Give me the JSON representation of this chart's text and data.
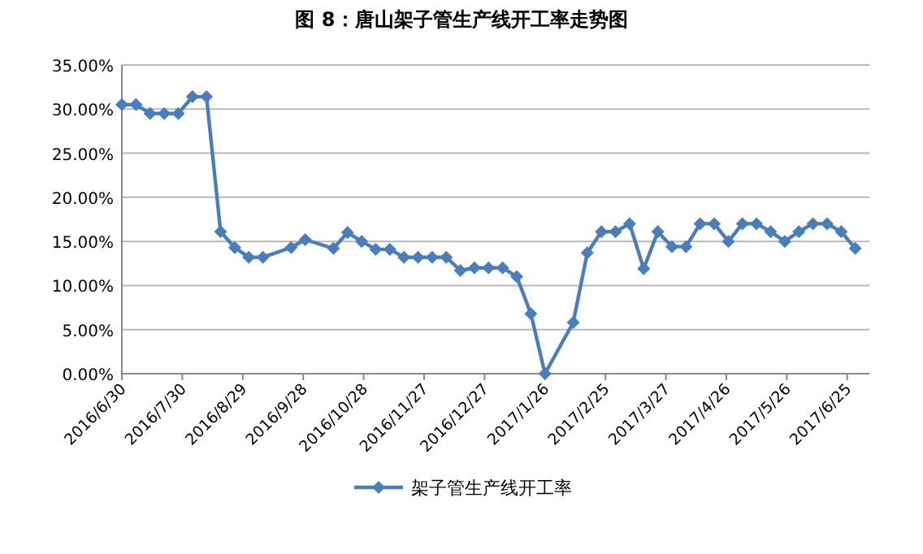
{
  "chart_data": {
    "type": "line",
    "title": "图 8：唐山架子管生产线开工率走势图",
    "x": [
      "2016-06-30",
      "2016-07-07",
      "2016-07-14",
      "2016-07-21",
      "2016-07-28",
      "2016-08-04",
      "2016-08-11",
      "2016-08-18",
      "2016-08-25",
      "2016-09-01",
      "2016-09-08",
      "2016-09-22",
      "2016-09-29",
      "2016-10-13",
      "2016-10-20",
      "2016-10-27",
      "2016-11-03",
      "2016-11-10",
      "2016-11-17",
      "2016-11-24",
      "2016-12-01",
      "2016-12-08",
      "2016-12-15",
      "2016-12-22",
      "2016-12-29",
      "2017-01-05",
      "2017-01-12",
      "2017-01-19",
      "2017-01-26",
      "2017-02-09",
      "2017-02-16",
      "2017-02-23",
      "2017-03-02",
      "2017-03-09",
      "2017-03-16",
      "2017-03-23",
      "2017-03-30",
      "2017-04-06",
      "2017-04-13",
      "2017-04-20",
      "2017-04-27",
      "2017-05-04",
      "2017-05-11",
      "2017-05-18",
      "2017-05-25",
      "2017-06-01",
      "2017-06-08",
      "2017-06-15",
      "2017-06-22",
      "2017-06-29"
    ],
    "series": [
      {
        "name": "架子管生产线开工率",
        "color": "#4a7ebb",
        "values": [
          30.5,
          30.5,
          29.5,
          29.5,
          29.5,
          31.4,
          31.4,
          16.1,
          14.3,
          13.2,
          13.2,
          14.3,
          15.2,
          14.2,
          16.0,
          15.0,
          14.1,
          14.1,
          13.2,
          13.2,
          13.2,
          13.2,
          11.7,
          12.0,
          12.0,
          12.0,
          11.0,
          6.8,
          0,
          5.8,
          13.7,
          16.1,
          16.1,
          17.0,
          11.9,
          16.1,
          14.4,
          14.4,
          17.0,
          17.0,
          15.0,
          17.0,
          17.0,
          16.1,
          15.0,
          16.1,
          17.0,
          17.0,
          16.1,
          14.2
        ]
      }
    ],
    "xlim": [
      "2016-06-30",
      "2017-07-06"
    ],
    "xticks": [
      {
        "value": "2016-06-30",
        "label": "2016/6/30"
      },
      {
        "value": "2016-07-30",
        "label": "2016/7/30"
      },
      {
        "value": "2016-08-29",
        "label": "2016/8/29"
      },
      {
        "value": "2016-09-28",
        "label": "2016/9/28"
      },
      {
        "value": "2016-10-28",
        "label": "2016/10/28"
      },
      {
        "value": "2016-11-27",
        "label": "2016/11/27"
      },
      {
        "value": "2016-12-27",
        "label": "2016/12/27"
      },
      {
        "value": "2017-01-26",
        "label": "2017/1/26"
      },
      {
        "value": "2017-02-25",
        "label": "2017/2/25"
      },
      {
        "value": "2017-03-27",
        "label": "2017/3/27"
      },
      {
        "value": "2017-04-26",
        "label": "2017/4/26"
      },
      {
        "value": "2017-05-26",
        "label": "2017/5/26"
      },
      {
        "value": "2017-06-25",
        "label": "2017/6/25"
      }
    ],
    "ylim": [
      0,
      35
    ],
    "yticks": [
      {
        "value": 0,
        "label": "0.00%"
      },
      {
        "value": 5,
        "label": "5.00%"
      },
      {
        "value": 10,
        "label": "10.00%"
      },
      {
        "value": 15,
        "label": "15.00%"
      },
      {
        "value": 20,
        "label": "20.00%"
      },
      {
        "value": 25,
        "label": "25.00%"
      },
      {
        "value": 30,
        "label": "30.00%"
      },
      {
        "value": 35,
        "label": "35.00%"
      }
    ],
    "grid": "y",
    "legend": "bottom",
    "marker": "diamond",
    "line_style": "solid"
  }
}
